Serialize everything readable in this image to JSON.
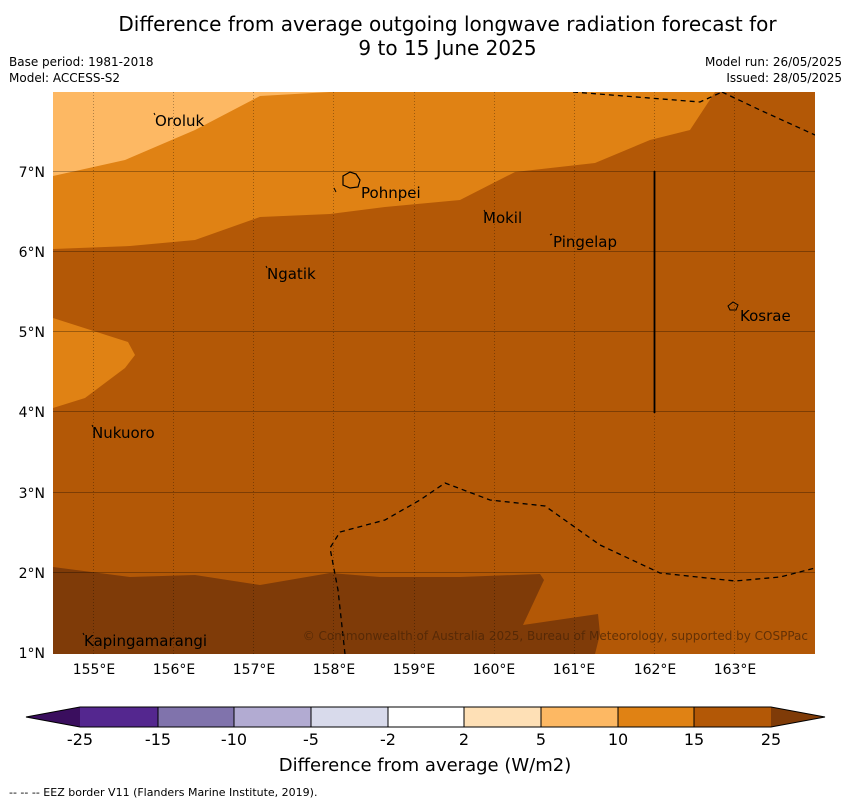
{
  "title_line1": "Difference from average outgoing longwave radiation forecast for",
  "title_line2": "9 to 15 June 2025",
  "base_period": "Base period: 1981-2018",
  "model": "Model: ACCESS-S2",
  "model_run": "Model run: 26/05/2025",
  "issued": "Issued: 28/05/2025",
  "places": [
    {
      "name": "Oroluk"
    },
    {
      "name": "Pohnpei"
    },
    {
      "name": "Mokil"
    },
    {
      "name": "Pingelap"
    },
    {
      "name": "Ngatik"
    },
    {
      "name": "Kosrae"
    },
    {
      "name": "Nukuoro"
    },
    {
      "name": "Kapingamarangi"
    }
  ],
  "lat_ticks": [
    "7°N",
    "6°N",
    "5°N",
    "4°N",
    "3°N",
    "2°N",
    "1°N"
  ],
  "lon_ticks": [
    "155°E",
    "156°E",
    "157°E",
    "158°E",
    "159°E",
    "160°E",
    "161°E",
    "162°E",
    "163°E"
  ],
  "copyright": "© Commonwealth of Australia 2025, Bureau of Meteorology, supported by COSPPac",
  "colorbar": {
    "title": "Difference from average (W/m2)",
    "ticks": [
      "-25",
      "-15",
      "-10",
      "-5",
      "-2",
      "2",
      "5",
      "10",
      "15",
      "25"
    ],
    "colors": {
      "lt_-25": "#3a0e5e",
      "-25_-15": "#54278f",
      "-15_-10": "#8073ac",
      "-10_-5": "#b2abd2",
      "-5_-2": "#d8daeb",
      "-2_2": "#ffffff",
      "2_5": "#fee0b6",
      "5_10": "#fdb863",
      "10_15": "#e08214",
      "15_25": "#b35806",
      "gt_25": "#7f3b08"
    }
  },
  "footer": "-- -- -- EEZ border V11 (Flanders Marine Institute, 2019)."
}
